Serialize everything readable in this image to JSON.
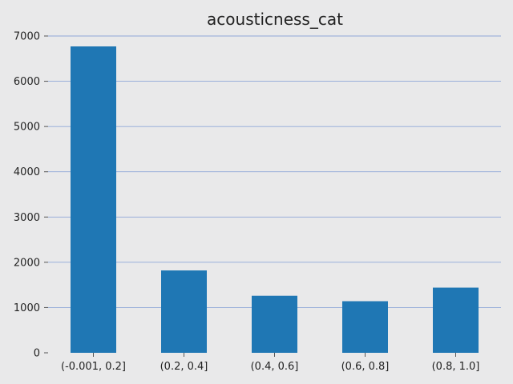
{
  "chart_data": {
    "type": "bar",
    "title": "acousticness_cat",
    "xlabel": "",
    "ylabel": "",
    "categories": [
      "(-0.001, 0.2]",
      "(0.2, 0.4]",
      "(0.4, 0.6]",
      "(0.6, 0.8]",
      "(0.8, 1.0]"
    ],
    "values": [
      6770,
      1820,
      1260,
      1140,
      1440
    ],
    "ylim": [
      0,
      7000
    ],
    "yticks": [
      0,
      1000,
      2000,
      3000,
      4000,
      5000,
      6000,
      7000
    ],
    "grid": true,
    "legend": "none",
    "colors": {
      "background": "#e9e9ea",
      "bar": "#1f77b4",
      "grid": "#8fa8d8",
      "text": "#222222",
      "tick": "#555555"
    }
  }
}
